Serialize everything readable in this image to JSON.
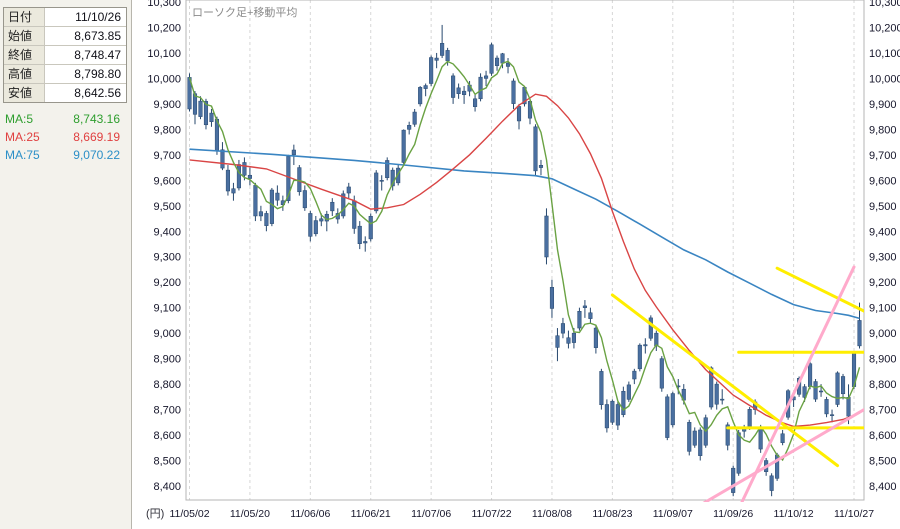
{
  "panel": {
    "rows": [
      {
        "label": "日付",
        "value": "11/10/26"
      },
      {
        "label": "始値",
        "value": "8,673.85"
      },
      {
        "label": "終値",
        "value": "8,748.47"
      },
      {
        "label": "高値",
        "value": "8,798.80"
      },
      {
        "label": "安値",
        "value": "8,642.56"
      }
    ],
    "ma_rows": [
      {
        "label": "MA:5",
        "value": "8,743.16",
        "color": "#2e9e2e"
      },
      {
        "label": "MA:25",
        "value": "8,669.19",
        "color": "#e04040"
      },
      {
        "label": "MA:75",
        "value": "9,070.22",
        "color": "#2b8fc7"
      }
    ]
  },
  "chart_data": {
    "type": "candlestick",
    "title": "ローソク足+移動平均",
    "unit_label": "(円)",
    "y_axis": {
      "min": 8400,
      "max": 10300,
      "tick_step": 100,
      "tick_labels": [
        "10,300",
        "10,200",
        "10,100",
        "10,000",
        "9,900",
        "9,800",
        "9,700",
        "9,600",
        "9,500",
        "9,400",
        "9,300",
        "9,200",
        "9,100",
        "9,000",
        "8,900",
        "8,800",
        "8,700",
        "8,600",
        "8,500",
        "8,400"
      ]
    },
    "x_ticks": [
      {
        "label": "11/05/02",
        "index": 0
      },
      {
        "label": "11/05/20",
        "index": 11
      },
      {
        "label": "11/06/06",
        "index": 22
      },
      {
        "label": "11/06/21",
        "index": 33
      },
      {
        "label": "11/07/06",
        "index": 44
      },
      {
        "label": "11/07/22",
        "index": 55
      },
      {
        "label": "11/08/08",
        "index": 66
      },
      {
        "label": "11/08/23",
        "index": 77
      },
      {
        "label": "11/09/07",
        "index": 88
      },
      {
        "label": "11/09/26",
        "index": 99
      },
      {
        "label": "11/10/12",
        "index": 110
      },
      {
        "label": "11/10/27",
        "index": 121
      }
    ],
    "candle_color": {
      "fill": "#4a6fa0",
      "stroke": "#27486e"
    },
    "candles_ohlc": [
      [
        9880,
        10020,
        9870,
        10004
      ],
      [
        9940,
        9950,
        9820,
        9859
      ],
      [
        9850,
        9930,
        9840,
        9911
      ],
      [
        9910,
        9920,
        9800,
        9818
      ],
      [
        9830,
        9880,
        9810,
        9864
      ],
      [
        9840,
        9850,
        9700,
        9717
      ],
      [
        9720,
        9750,
        9640,
        9648
      ],
      [
        9640,
        9660,
        9540,
        9558
      ],
      [
        9550,
        9590,
        9520,
        9567
      ],
      [
        9570,
        9680,
        9560,
        9662
      ],
      [
        9670,
        9690,
        9600,
        9620
      ],
      [
        9620,
        9650,
        9580,
        9607
      ],
      [
        9580,
        9590,
        9440,
        9460
      ],
      [
        9460,
        9500,
        9440,
        9477
      ],
      [
        9470,
        9480,
        9400,
        9422
      ],
      [
        9430,
        9570,
        9420,
        9562
      ],
      [
        9550,
        9580,
        9500,
        9522
      ],
      [
        9520,
        9540,
        9480,
        9504
      ],
      [
        9520,
        9700,
        9510,
        9694
      ],
      [
        9700,
        9740,
        9660,
        9719
      ],
      [
        9650,
        9660,
        9540,
        9555
      ],
      [
        9560,
        9580,
        9480,
        9492
      ],
      [
        9470,
        9480,
        9360,
        9380
      ],
      [
        9390,
        9460,
        9380,
        9442
      ],
      [
        9440,
        9470,
        9420,
        9449
      ],
      [
        9440,
        9480,
        9400,
        9467
      ],
      [
        9480,
        9530,
        9460,
        9514
      ],
      [
        9470,
        9490,
        9430,
        9448
      ],
      [
        9460,
        9560,
        9450,
        9547
      ],
      [
        9550,
        9590,
        9530,
        9574
      ],
      [
        9520,
        9540,
        9390,
        9411
      ],
      [
        9420,
        9440,
        9330,
        9351
      ],
      [
        9360,
        9380,
        9320,
        9354
      ],
      [
        9370,
        9470,
        9360,
        9459
      ],
      [
        9480,
        9640,
        9470,
        9629
      ],
      [
        9600,
        9620,
        9560,
        9596
      ],
      [
        9610,
        9690,
        9600,
        9678
      ],
      [
        9640,
        9650,
        9560,
        9578
      ],
      [
        9590,
        9660,
        9580,
        9648
      ],
      [
        9670,
        9800,
        9660,
        9797
      ],
      [
        9800,
        9830,
        9780,
        9816
      ],
      [
        9820,
        9880,
        9810,
        9868
      ],
      [
        9900,
        9970,
        9890,
        9965
      ],
      [
        9960,
        9980,
        9930,
        9972
      ],
      [
        9980,
        10090,
        9970,
        10082
      ],
      [
        10080,
        10100,
        10040,
        10071
      ],
      [
        10090,
        10210,
        10080,
        10138
      ],
      [
        10110,
        10120,
        10050,
        10069
      ],
      [
        10010,
        10020,
        9900,
        9925
      ],
      [
        9940,
        9980,
        9920,
        9963
      ],
      [
        9950,
        9970,
        9900,
        9936
      ],
      [
        9950,
        9990,
        9930,
        9974
      ],
      [
        9920,
        9940,
        9870,
        9889
      ],
      [
        9920,
        10020,
        9910,
        10005
      ],
      [
        10000,
        10030,
        9970,
        10010
      ],
      [
        10020,
        10140,
        10010,
        10132
      ],
      [
        10080,
        10090,
        10030,
        10050
      ],
      [
        10060,
        10100,
        10040,
        10097
      ],
      [
        10060,
        10080,
        10020,
        10047
      ],
      [
        9990,
        10000,
        9880,
        9901
      ],
      [
        9890,
        9900,
        9800,
        9833
      ],
      [
        9900,
        9970,
        9890,
        9965
      ],
      [
        9910,
        9920,
        9820,
        9844
      ],
      [
        9810,
        9820,
        9620,
        9637
      ],
      [
        9650,
        9680,
        9620,
        9659
      ],
      [
        9460,
        9490,
        9270,
        9299
      ],
      [
        9180,
        9210,
        9060,
        9097
      ],
      [
        8990,
        9020,
        8890,
        8944
      ],
      [
        9000,
        9060,
        8980,
        9038
      ],
      [
        8960,
        9010,
        8940,
        8982
      ],
      [
        9000,
        9020,
        8940,
        8963
      ],
      [
        9020,
        9100,
        9010,
        9086
      ],
      [
        9100,
        9130,
        9060,
        9107
      ],
      [
        9080,
        9100,
        9040,
        9057
      ],
      [
        9020,
        9030,
        8920,
        8943
      ],
      [
        8850,
        8860,
        8700,
        8719
      ],
      [
        8720,
        8740,
        8610,
        8628
      ],
      [
        8650,
        8740,
        8640,
        8733
      ],
      [
        8720,
        8730,
        8620,
        8639
      ],
      [
        8680,
        8790,
        8670,
        8772
      ],
      [
        8740,
        8810,
        8730,
        8797
      ],
      [
        8820,
        8860,
        8800,
        8851
      ],
      [
        8860,
        8960,
        8850,
        8953
      ],
      [
        8950,
        8980,
        8920,
        8955
      ],
      [
        8980,
        9070,
        8970,
        9060
      ],
      [
        9000,
        9010,
        8930,
        8950
      ],
      [
        8900,
        8910,
        8770,
        8784
      ],
      [
        8750,
        8760,
        8580,
        8590
      ],
      [
        8640,
        8770,
        8630,
        8763
      ],
      [
        8790,
        8820,
        8760,
        8793
      ],
      [
        8780,
        8800,
        8720,
        8737
      ],
      [
        8650,
        8660,
        8520,
        8536
      ],
      [
        8560,
        8630,
        8550,
        8616
      ],
      [
        8620,
        8630,
        8500,
        8519
      ],
      [
        8560,
        8680,
        8550,
        8668
      ],
      [
        8710,
        8870,
        8700,
        8864
      ],
      [
        8800,
        8810,
        8700,
        8721
      ],
      [
        8740,
        8780,
        8720,
        8741
      ],
      [
        8640,
        8650,
        8540,
        8560
      ],
      [
        8470,
        8480,
        8360,
        8374
      ],
      [
        8450,
        8620,
        8440,
        8609
      ],
      [
        8630,
        8640,
        8590,
        8615
      ],
      [
        8630,
        8710,
        8620,
        8701
      ],
      [
        8730,
        8740,
        8680,
        8700
      ],
      [
        8630,
        8640,
        8530,
        8545
      ],
      [
        8500,
        8510,
        8440,
        8456
      ],
      [
        8440,
        8450,
        8360,
        8382
      ],
      [
        8430,
        8530,
        8420,
        8522
      ],
      [
        8570,
        8620,
        8560,
        8605
      ],
      [
        8670,
        8780,
        8660,
        8774
      ],
      [
        8750,
        8760,
        8710,
        8738
      ],
      [
        8760,
        8830,
        8750,
        8823
      ],
      [
        8790,
        8800,
        8730,
        8748
      ],
      [
        8790,
        8890,
        8780,
        8880
      ],
      [
        8810,
        8820,
        8730,
        8741
      ],
      [
        8770,
        8800,
        8750,
        8773
      ],
      [
        8740,
        8750,
        8670,
        8683
      ],
      [
        8680,
        8700,
        8650,
        8678
      ],
      [
        8720,
        8850,
        8710,
        8844
      ],
      [
        8830,
        8840,
        8740,
        8762
      ],
      [
        8674,
        8799,
        8643,
        8748
      ],
      [
        8790,
        8930,
        8780,
        8926
      ],
      [
        8950,
        9120,
        8940,
        9050
      ]
    ],
    "overlays": {
      "ma5": {
        "name": "MA5",
        "window": 5,
        "color": "#6aa243"
      },
      "ma25": {
        "name": "MA25",
        "color": "#d94545",
        "points": [
          [
            0,
            9680
          ],
          [
            8,
            9662
          ],
          [
            14,
            9645
          ],
          [
            19,
            9605
          ],
          [
            24,
            9565
          ],
          [
            30,
            9520
          ],
          [
            33,
            9487
          ],
          [
            36,
            9492
          ],
          [
            39,
            9505
          ],
          [
            42,
            9545
          ],
          [
            45,
            9592
          ],
          [
            48,
            9645
          ],
          [
            51,
            9700
          ],
          [
            54,
            9765
          ],
          [
            57,
            9832
          ],
          [
            60,
            9895
          ],
          [
            63,
            9938
          ],
          [
            65,
            9930
          ],
          [
            67,
            9893
          ],
          [
            69,
            9845
          ],
          [
            71,
            9783
          ],
          [
            73,
            9705
          ],
          [
            75,
            9608
          ],
          [
            77,
            9478
          ],
          [
            79,
            9360
          ],
          [
            81,
            9252
          ],
          [
            83,
            9168
          ],
          [
            85,
            9103
          ],
          [
            88,
            9013
          ],
          [
            91,
            8932
          ],
          [
            94,
            8857
          ],
          [
            97,
            8797
          ],
          [
            99,
            8757
          ],
          [
            102,
            8716
          ],
          [
            105,
            8678
          ],
          [
            108,
            8648
          ],
          [
            110,
            8634
          ],
          [
            113,
            8639
          ],
          [
            116,
            8649
          ],
          [
            119,
            8661
          ],
          [
            122,
            8686
          ]
        ]
      },
      "ma75": {
        "name": "MA75",
        "color": "#3a85c2",
        "points": [
          [
            0,
            9722
          ],
          [
            15,
            9702
          ],
          [
            30,
            9678
          ],
          [
            40,
            9658
          ],
          [
            50,
            9637
          ],
          [
            58,
            9626
          ],
          [
            63,
            9618
          ],
          [
            66,
            9606
          ],
          [
            70,
            9566
          ],
          [
            74,
            9526
          ],
          [
            78,
            9478
          ],
          [
            82,
            9428
          ],
          [
            86,
            9377
          ],
          [
            90,
            9327
          ],
          [
            94,
            9288
          ],
          [
            98,
            9240
          ],
          [
            102,
            9196
          ],
          [
            106,
            9152
          ],
          [
            110,
            9112
          ],
          [
            114,
            9089
          ],
          [
            118,
            9077
          ],
          [
            120,
            9070
          ],
          [
            122,
            9058
          ]
        ]
      }
    },
    "trendlines": [
      {
        "color": "#ffee00",
        "x1": 77,
        "p1": 9150,
        "x2": 118,
        "p2": 8480
      },
      {
        "color": "#ffee00",
        "x1": 107,
        "p1": 9255,
        "x2": 123,
        "p2": 9085
      },
      {
        "color": "#ffee00",
        "x1": 100,
        "p1": 8925,
        "x2": 124,
        "p2": 8925
      },
      {
        "color": "#ffee00",
        "x1": 98,
        "p1": 8628,
        "x2": 125,
        "p2": 8628
      },
      {
        "color": "#ffaacb",
        "x1": 93,
        "p1": 8325,
        "x2": 126,
        "p2": 8740
      },
      {
        "color": "#ffaacb",
        "x1": 100,
        "p1": 8310,
        "x2": 121,
        "p2": 9260
      }
    ]
  }
}
